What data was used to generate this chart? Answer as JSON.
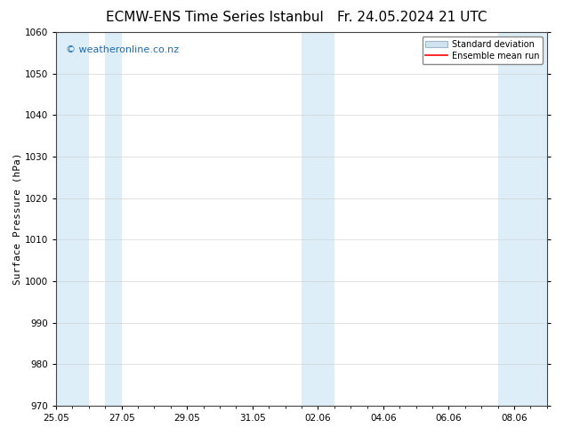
{
  "title_left": "ECMW-ENS Time Series Istanbul",
  "title_right": "Fr. 24.05.2024 21 UTC",
  "ylabel": "Surface Pressure (hPa)",
  "ylim": [
    970,
    1060
  ],
  "yticks": [
    970,
    980,
    990,
    1000,
    1010,
    1020,
    1030,
    1040,
    1050,
    1060
  ],
  "xtick_labels": [
    "25.05",
    "27.05",
    "29.05",
    "31.05",
    "02.06",
    "04.06",
    "06.06",
    "08.06"
  ],
  "xtick_positions": [
    0,
    2,
    4,
    6,
    8,
    10,
    12,
    14
  ],
  "shaded_bands": [
    {
      "x_start": 0.0,
      "x_end": 1.0
    },
    {
      "x_start": 1.5,
      "x_end": 2.0
    },
    {
      "x_start": 7.5,
      "x_end": 8.5
    },
    {
      "x_start": 13.5,
      "x_end": 15.0
    }
  ],
  "shade_color": "#ddeef8",
  "shade_alpha": 1.0,
  "watermark_text": "© weatheronline.co.nz",
  "watermark_color": "#1a6bb5",
  "watermark_fontsize": 8,
  "legend_std_label": "Standard deviation",
  "legend_mean_label": "Ensemble mean run",
  "legend_std_facecolor": "#d0e4f0",
  "legend_std_edgecolor": "#a0b8cc",
  "legend_mean_color": "#ff0000",
  "bg_color": "#ffffff",
  "axes_bg_color": "#ffffff",
  "title_fontsize": 11,
  "axis_label_fontsize": 8,
  "tick_fontsize": 7.5,
  "xlim": [
    0,
    15
  ],
  "total_days": 15
}
